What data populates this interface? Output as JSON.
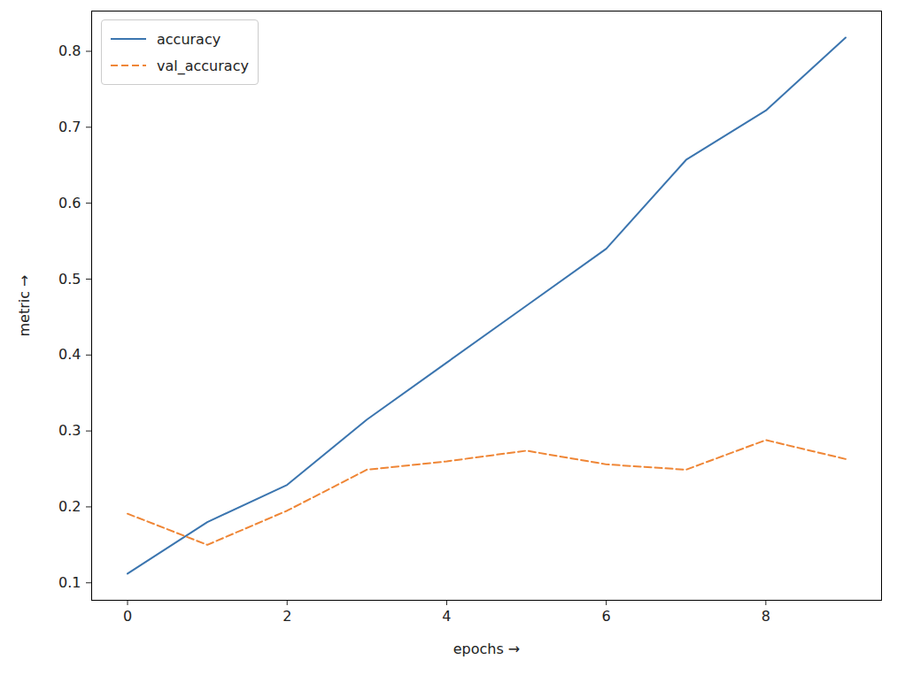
{
  "chart_data": {
    "type": "line",
    "x_label": "epochs",
    "y_label": "metric",
    "x": [
      0,
      1,
      2,
      3,
      4,
      5,
      6,
      7,
      8,
      9
    ],
    "series": [
      {
        "name": "accuracy",
        "color": "#3b75af",
        "line_style": "solid",
        "values": [
          0.112,
          0.18,
          0.229,
          0.315,
          0.39,
          0.465,
          0.54,
          0.657,
          0.722,
          0.818
        ]
      },
      {
        "name": "val_accuracy",
        "color": "#ef8636",
        "line_style": "dashed",
        "values": [
          0.191,
          0.15,
          0.195,
          0.249,
          0.26,
          0.274,
          0.256,
          0.249,
          0.288,
          0.263
        ]
      }
    ],
    "xlim": [
      -0.45,
      9.45
    ],
    "xticks": [
      0,
      2,
      4,
      6,
      8
    ],
    "ylim": [
      0.077,
      0.853
    ],
    "yticks": [
      0.1,
      0.2,
      0.3,
      0.4,
      0.5,
      0.6,
      0.7,
      0.8
    ],
    "legend": "upper left",
    "grid": false
  }
}
